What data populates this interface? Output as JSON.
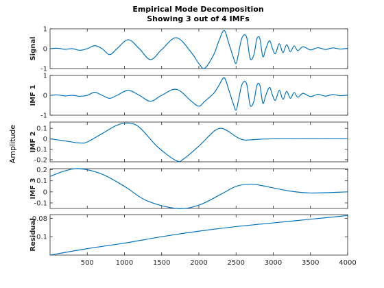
{
  "chart_data": {
    "type": "line",
    "title": "Empirical Mode Decomposition",
    "subtitle": "Showing 3 out of 4 IMFs",
    "common_ylabel": "Amplitude",
    "xlim": [
      0,
      4000
    ],
    "x_ticks": [
      "500",
      "1000",
      "1500",
      "2000",
      "2500",
      "3000",
      "3500",
      "4000"
    ],
    "line_color": "#0072bd",
    "grid": false,
    "panels": [
      {
        "name": "Signal",
        "ylim": [
          -1,
          1
        ],
        "y_ticks": [
          "1",
          "0",
          "-1"
        ],
        "points": [
          [
            0,
            0
          ],
          [
            100,
            0.02
          ],
          [
            200,
            -0.03
          ],
          [
            300,
            0.0
          ],
          [
            400,
            -0.08
          ],
          [
            500,
            0.0
          ],
          [
            600,
            0.15
          ],
          [
            700,
            0.0
          ],
          [
            800,
            -0.3
          ],
          [
            900,
            0.0
          ],
          [
            1050,
            0.45
          ],
          [
            1200,
            0.0
          ],
          [
            1350,
            -0.55
          ],
          [
            1500,
            -0.05
          ],
          [
            1700,
            0.55
          ],
          [
            1900,
            -0.2
          ],
          [
            2000,
            -0.75
          ],
          [
            2080,
            -0.98
          ],
          [
            2200,
            -0.3
          ],
          [
            2270,
            0.4
          ],
          [
            2340,
            0.92
          ],
          [
            2400,
            0.3
          ],
          [
            2460,
            -0.4
          ],
          [
            2500,
            -0.75
          ],
          [
            2530,
            -0.3
          ],
          [
            2580,
            0.55
          ],
          [
            2640,
            0.6
          ],
          [
            2690,
            -0.5
          ],
          [
            2740,
            -0.3
          ],
          [
            2780,
            0.5
          ],
          [
            2820,
            0.5
          ],
          [
            2860,
            -0.4
          ],
          [
            2900,
            0.0
          ],
          [
            2950,
            0.4
          ],
          [
            2990,
            0.0
          ],
          [
            3030,
            -0.25
          ],
          [
            3080,
            0.25
          ],
          [
            3130,
            -0.2
          ],
          [
            3180,
            0.2
          ],
          [
            3230,
            -0.15
          ],
          [
            3280,
            0.14
          ],
          [
            3330,
            -0.1
          ],
          [
            3400,
            0.1
          ],
          [
            3500,
            -0.06
          ],
          [
            3600,
            0.05
          ],
          [
            3700,
            -0.04
          ],
          [
            3800,
            0.04
          ],
          [
            3900,
            -0.02
          ],
          [
            4000,
            0.02
          ]
        ]
      },
      {
        "name": "IMF 1",
        "ylim": [
          -1,
          1
        ],
        "y_ticks": [
          "1",
          "0",
          "-1"
        ],
        "points": [
          [
            0,
            0
          ],
          [
            100,
            0.02
          ],
          [
            200,
            -0.03
          ],
          [
            300,
            0.0
          ],
          [
            400,
            -0.05
          ],
          [
            500,
            0.0
          ],
          [
            600,
            0.15
          ],
          [
            700,
            0.0
          ],
          [
            800,
            -0.15
          ],
          [
            900,
            0.0
          ],
          [
            1050,
            0.25
          ],
          [
            1200,
            0.0
          ],
          [
            1350,
            -0.3
          ],
          [
            1500,
            0.0
          ],
          [
            1700,
            0.3
          ],
          [
            1900,
            -0.3
          ],
          [
            2000,
            -0.55
          ],
          [
            2080,
            -0.3
          ],
          [
            2200,
            0.1
          ],
          [
            2270,
            0.5
          ],
          [
            2340,
            0.88
          ],
          [
            2400,
            0.3
          ],
          [
            2460,
            -0.4
          ],
          [
            2500,
            -0.75
          ],
          [
            2530,
            -0.3
          ],
          [
            2580,
            0.55
          ],
          [
            2640,
            0.6
          ],
          [
            2690,
            -0.5
          ],
          [
            2740,
            -0.3
          ],
          [
            2780,
            0.5
          ],
          [
            2820,
            0.5
          ],
          [
            2860,
            -0.4
          ],
          [
            2900,
            0.0
          ],
          [
            2950,
            0.4
          ],
          [
            2990,
            0.0
          ],
          [
            3030,
            -0.25
          ],
          [
            3080,
            0.25
          ],
          [
            3130,
            -0.2
          ],
          [
            3180,
            0.2
          ],
          [
            3230,
            -0.15
          ],
          [
            3280,
            0.14
          ],
          [
            3330,
            -0.1
          ],
          [
            3400,
            0.1
          ],
          [
            3500,
            -0.06
          ],
          [
            3600,
            0.05
          ],
          [
            3700,
            -0.04
          ],
          [
            3800,
            0.04
          ],
          [
            3900,
            -0.02
          ],
          [
            4000,
            0.02
          ]
        ]
      },
      {
        "name": "IMF 2",
        "ylim": [
          -0.22,
          0.16
        ],
        "y_ticks": [
          "0.1",
          "0",
          "-0.1",
          "-0.2"
        ],
        "points": [
          [
            0,
            0.0
          ],
          [
            200,
            -0.02
          ],
          [
            400,
            -0.04
          ],
          [
            500,
            -0.03
          ],
          [
            700,
            0.05
          ],
          [
            900,
            0.13
          ],
          [
            1050,
            0.15
          ],
          [
            1200,
            0.11
          ],
          [
            1450,
            -0.08
          ],
          [
            1700,
            -0.21
          ],
          [
            1800,
            -0.19
          ],
          [
            2000,
            -0.07
          ],
          [
            2200,
            0.07
          ],
          [
            2300,
            0.1
          ],
          [
            2400,
            0.07
          ],
          [
            2500,
            0.02
          ],
          [
            2600,
            -0.01
          ],
          [
            2700,
            -0.01
          ],
          [
            3000,
            0.0
          ],
          [
            4000,
            0.0
          ]
        ]
      },
      {
        "name": "IMF 3",
        "ylim": [
          -0.15,
          0.21
        ],
        "y_ticks": [
          "0.2",
          "0.1",
          "0",
          "-0.1"
        ],
        "points": [
          [
            0,
            0.14
          ],
          [
            200,
            0.19
          ],
          [
            400,
            0.21
          ],
          [
            700,
            0.16
          ],
          [
            1000,
            0.05
          ],
          [
            1300,
            -0.08
          ],
          [
            1700,
            -0.15
          ],
          [
            2000,
            -0.12
          ],
          [
            2300,
            -0.02
          ],
          [
            2500,
            0.05
          ],
          [
            2700,
            0.07
          ],
          [
            2900,
            0.05
          ],
          [
            3200,
            0.01
          ],
          [
            3500,
            -0.01
          ],
          [
            4000,
            0.0
          ]
        ]
      },
      {
        "name": "Residual",
        "ylim": [
          -0.12,
          -0.076
        ],
        "y_ticks": [
          "-0.08",
          "-0.1"
        ],
        "points": [
          [
            0,
            -0.12
          ],
          [
            500,
            -0.113
          ],
          [
            1000,
            -0.107
          ],
          [
            1500,
            -0.1
          ],
          [
            2000,
            -0.094
          ],
          [
            2500,
            -0.089
          ],
          [
            3000,
            -0.085
          ],
          [
            3500,
            -0.081
          ],
          [
            4000,
            -0.077
          ]
        ]
      }
    ]
  }
}
